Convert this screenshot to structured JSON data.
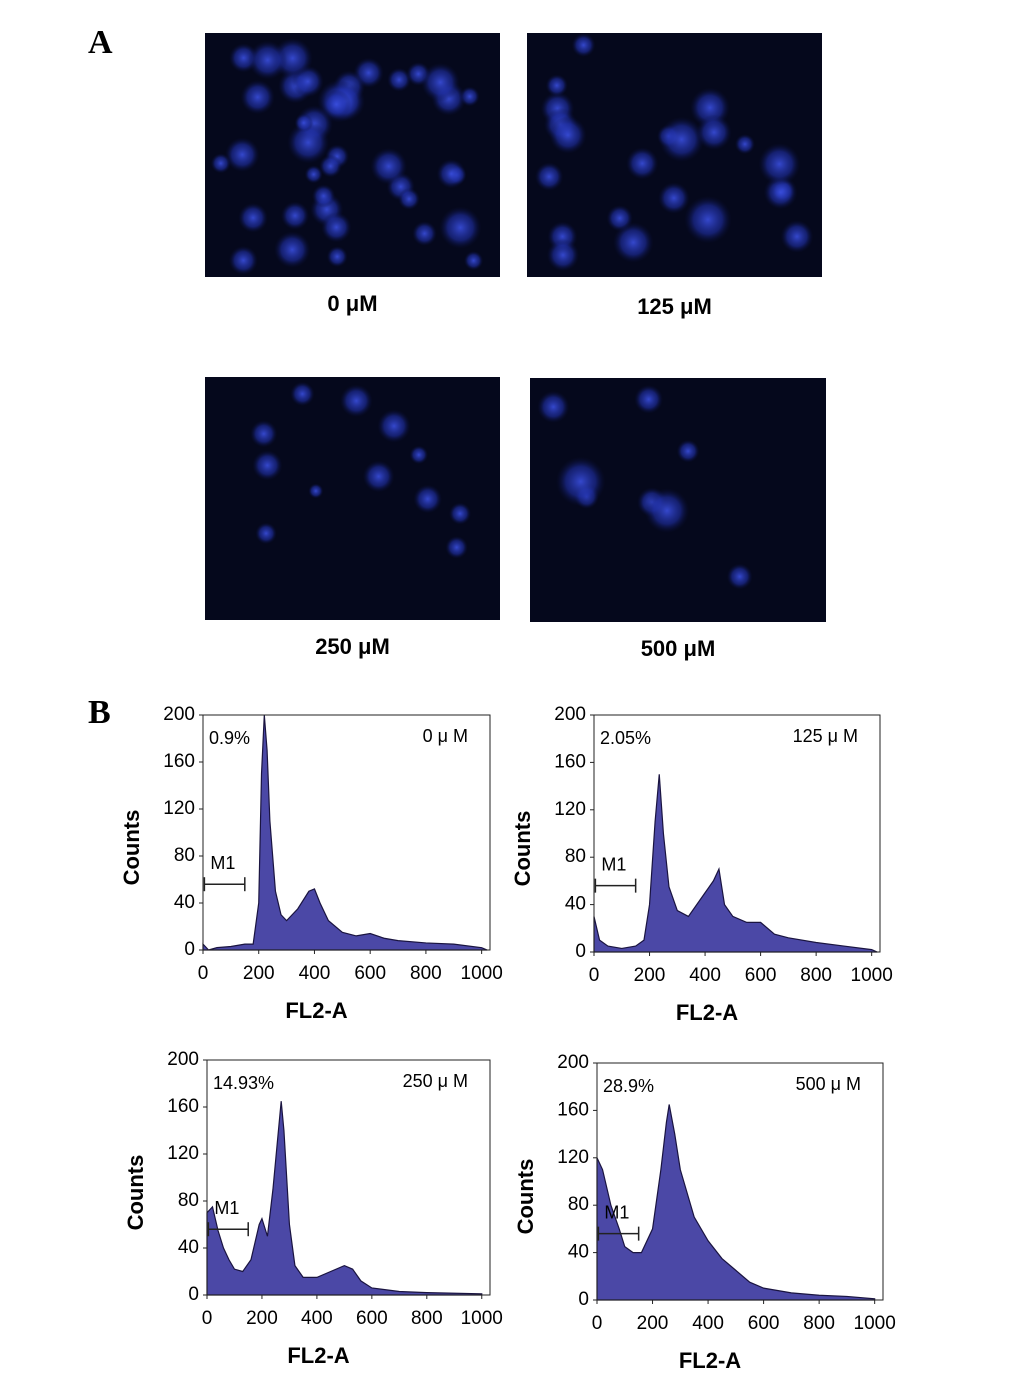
{
  "panel_a": {
    "label": "A",
    "images": [
      {
        "caption": "0 μM"
      },
      {
        "caption": "125 μM"
      },
      {
        "caption": "250 μM"
      },
      {
        "caption": "500 μM"
      }
    ]
  },
  "panel_b": {
    "label": "B"
  },
  "chart_data": [
    {
      "type": "area",
      "xlabel": "FL2-A",
      "ylabel": "Counts",
      "percent_label": "0.9%",
      "concentration_label": "0 μ M",
      "gate": {
        "label": "M1",
        "x": [
          5,
          150
        ]
      },
      "color": "#4b48a6",
      "x": [
        0,
        20,
        50,
        100,
        150,
        180,
        200,
        210,
        220,
        230,
        240,
        260,
        280,
        300,
        340,
        380,
        400,
        420,
        450,
        500,
        550,
        600,
        650,
        700,
        800,
        900,
        1000,
        1020
      ],
      "values": [
        5,
        0,
        2,
        3,
        5,
        5,
        40,
        150,
        200,
        170,
        110,
        50,
        30,
        25,
        35,
        50,
        52,
        40,
        25,
        15,
        12,
        14,
        10,
        8,
        6,
        5,
        2,
        0
      ],
      "xlim": [
        0,
        1030
      ],
      "ylim": [
        0,
        200
      ],
      "xticks": [
        0,
        200,
        400,
        600,
        800,
        1000
      ],
      "yticks": [
        0,
        40,
        80,
        120,
        160,
        200
      ]
    },
    {
      "type": "area",
      "xlabel": "FL2-A",
      "ylabel": "Counts",
      "percent_label": "2.05%",
      "concentration_label": "125 μ M",
      "gate": {
        "label": "M1",
        "x": [
          5,
          150
        ]
      },
      "color": "#4b48a6",
      "x": [
        0,
        20,
        50,
        100,
        150,
        180,
        200,
        220,
        235,
        250,
        270,
        300,
        340,
        400,
        430,
        450,
        470,
        500,
        550,
        600,
        650,
        700,
        800,
        900,
        1000,
        1020
      ],
      "values": [
        30,
        10,
        5,
        3,
        5,
        10,
        40,
        110,
        150,
        100,
        55,
        35,
        30,
        50,
        60,
        70,
        40,
        30,
        25,
        25,
        15,
        12,
        8,
        5,
        2,
        0
      ],
      "xlim": [
        0,
        1030
      ],
      "ylim": [
        0,
        200
      ],
      "xticks": [
        0,
        200,
        400,
        600,
        800,
        1000
      ],
      "yticks": [
        0,
        40,
        80,
        120,
        160,
        200
      ]
    },
    {
      "type": "area",
      "xlabel": "FL2-A",
      "ylabel": "Counts",
      "percent_label": "14.93%",
      "concentration_label": "250 μ M",
      "gate": {
        "label": "M1",
        "x": [
          5,
          150
        ]
      },
      "color": "#4b48a6",
      "x": [
        0,
        20,
        40,
        60,
        80,
        100,
        130,
        160,
        190,
        200,
        220,
        240,
        260,
        270,
        280,
        300,
        320,
        350,
        400,
        450,
        500,
        530,
        560,
        600,
        700,
        800,
        1000
      ],
      "values": [
        70,
        75,
        55,
        40,
        30,
        22,
        20,
        30,
        60,
        65,
        50,
        90,
        140,
        165,
        140,
        60,
        25,
        15,
        15,
        20,
        25,
        22,
        12,
        6,
        3,
        2,
        1
      ],
      "xlim": [
        0,
        1030
      ],
      "ylim": [
        0,
        200
      ],
      "xticks": [
        0,
        200,
        400,
        600,
        800,
        1000
      ],
      "yticks": [
        0,
        40,
        80,
        120,
        160,
        200
      ]
    },
    {
      "type": "area",
      "xlabel": "FL2-A",
      "ylabel": "Counts",
      "percent_label": "28.9%",
      "concentration_label": "500 μ M",
      "gate": {
        "label": "M1",
        "x": [
          5,
          150
        ]
      },
      "color": "#4b48a6",
      "x": [
        0,
        20,
        50,
        80,
        100,
        130,
        160,
        200,
        230,
        250,
        260,
        280,
        300,
        350,
        400,
        450,
        500,
        550,
        600,
        700,
        800,
        900,
        1000
      ],
      "values": [
        120,
        110,
        80,
        60,
        45,
        40,
        40,
        60,
        110,
        150,
        165,
        140,
        110,
        70,
        50,
        35,
        25,
        15,
        10,
        6,
        4,
        3,
        1
      ],
      "xlim": [
        0,
        1030
      ],
      "ylim": [
        0,
        200
      ],
      "xticks": [
        0,
        200,
        400,
        600,
        800,
        1000
      ],
      "yticks": [
        0,
        40,
        80,
        120,
        160,
        200
      ]
    }
  ]
}
